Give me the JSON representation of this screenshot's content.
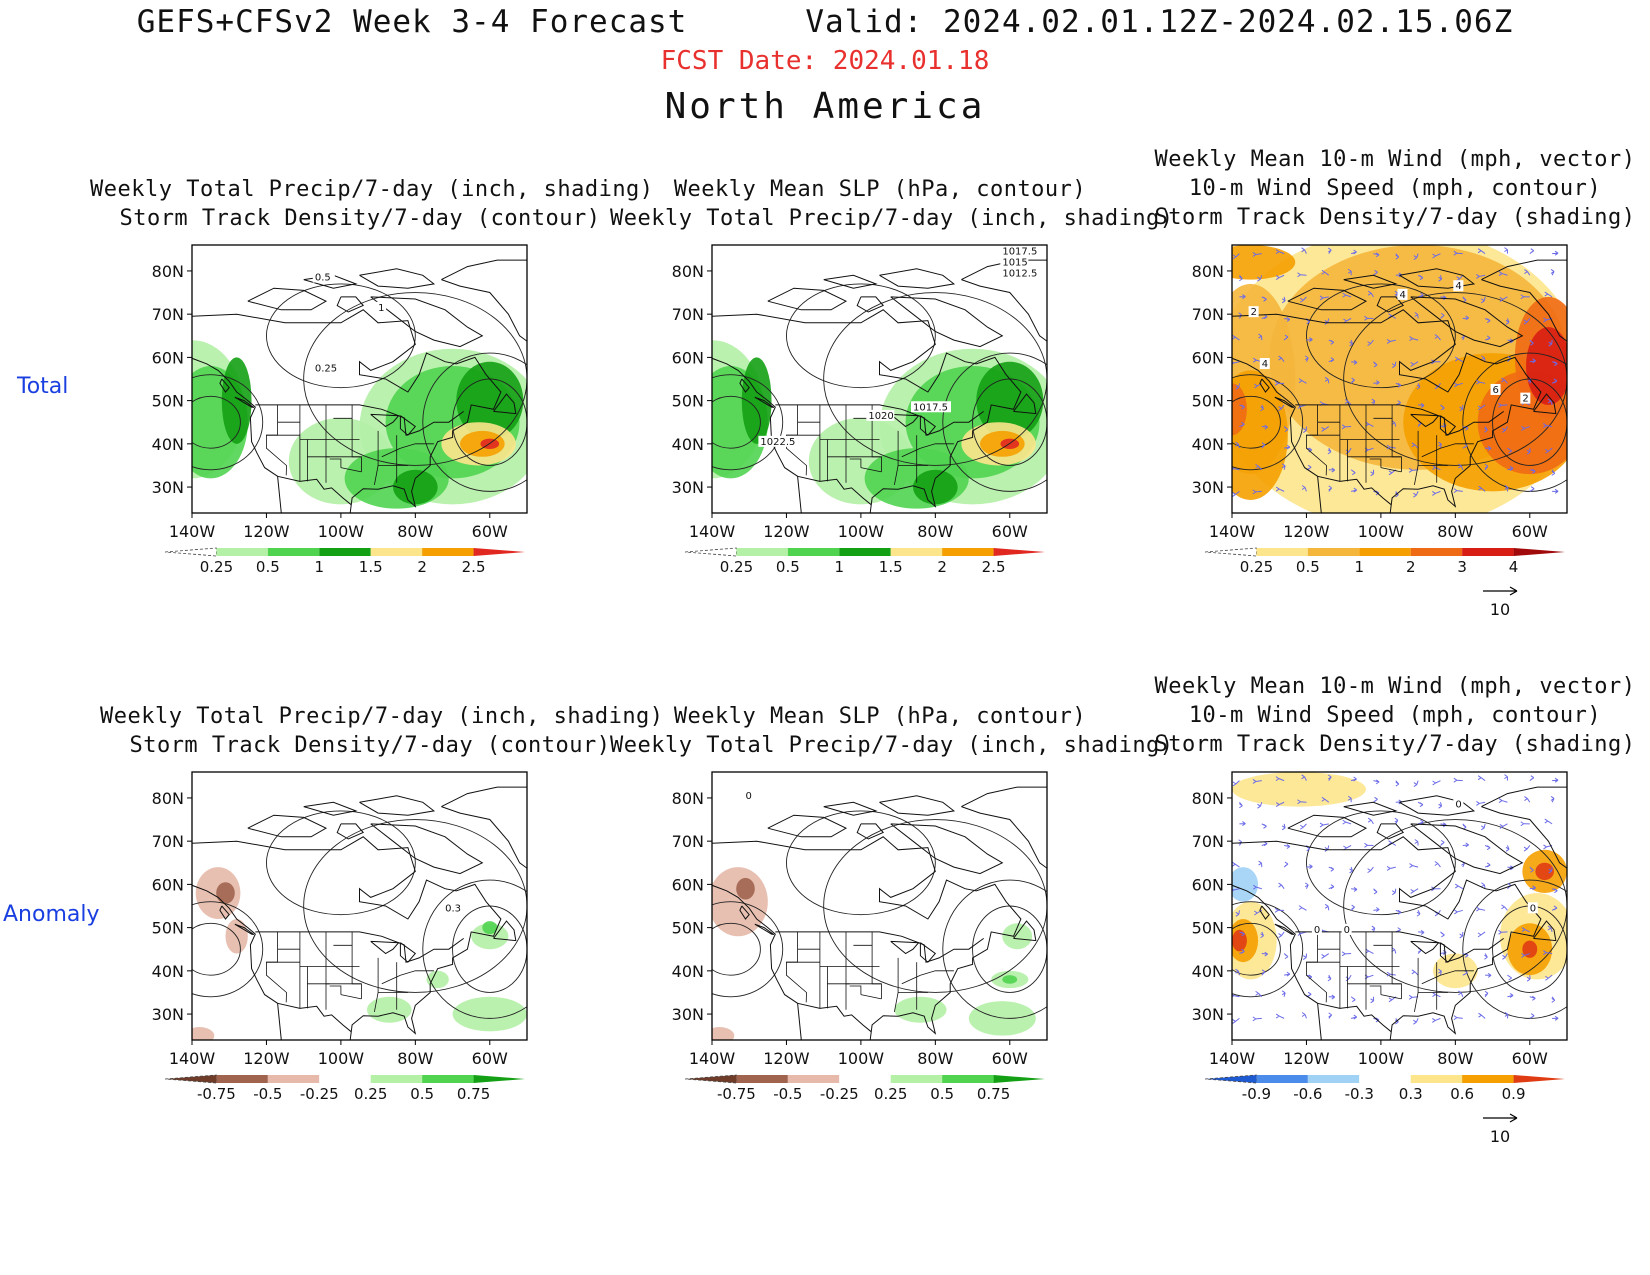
{
  "header": {
    "title": "GEFS+CFSv2 Week 3-4 Forecast",
    "valid": "Valid: 2024.02.01.12Z-2024.02.15.06Z",
    "fcst_date": "FCST Date: 2024.01.18",
    "region": "North America"
  },
  "rows": [
    {
      "label": "Total"
    },
    {
      "label": "Anomaly"
    }
  ],
  "map_axes": {
    "lat_labels": [
      "80N",
      "70N",
      "60N",
      "50N",
      "40N",
      "30N"
    ],
    "lon_labels": [
      "140W",
      "120W",
      "100W",
      "80W",
      "60W"
    ]
  },
  "panels": [
    {
      "id": "total-precip",
      "title_lines": [
        "Weekly Total Precip/7-day (inch, shading)",
        "Storm Track Density/7-day (contour)"
      ],
      "colorbar": {
        "labels": [
          "0.25",
          "0.5",
          "1",
          "1.5",
          "2",
          "2.5"
        ],
        "colors": [
          "#ffffff",
          "#b4f0a6",
          "#50d450",
          "#14a014",
          "#fde58c",
          "#f5a000",
          "#e02820"
        ]
      },
      "contour_labels": [
        "0.5",
        "1",
        "0.25"
      ],
      "vector_key": null
    },
    {
      "id": "total-slp",
      "title_lines": [
        "Weekly Mean SLP (hPa, contour)",
        "Weekly Total Precip/7-day (inch, shading)"
      ],
      "colorbar": {
        "labels": [
          "0.25",
          "0.5",
          "1",
          "1.5",
          "2",
          "2.5"
        ],
        "colors": [
          "#ffffff",
          "#b4f0a6",
          "#50d450",
          "#14a014",
          "#fde58c",
          "#f5a000",
          "#e02820"
        ]
      },
      "contour_labels": [
        "1017.5",
        "1015",
        "1012.5",
        "1022.5",
        "1020",
        "1017.5"
      ],
      "vector_key": null
    },
    {
      "id": "total-wind",
      "title_lines": [
        "Weekly Mean 10-m Wind (mph, vector)",
        "10-m Wind Speed (mph, contour)",
        "Storm Track Density/7-day (shading)"
      ],
      "colorbar": {
        "labels": [
          "0.25",
          "0.5",
          "1",
          "2",
          "3",
          "4"
        ],
        "colors": [
          "#ffffff",
          "#fde58c",
          "#f5b63c",
          "#f5a000",
          "#ef6a14",
          "#d81e14",
          "#a00a0a"
        ]
      },
      "contour_labels": [
        "4",
        "4",
        "2",
        "4",
        "6",
        "2"
      ],
      "vector_key": "10"
    },
    {
      "id": "anom-precip",
      "title_lines": [
        "Weekly Total Precip/7-day (inch, shading)",
        "Storm Track Density/7-day (contour)"
      ],
      "colorbar": {
        "labels": [
          "-0.75",
          "-0.5",
          "-0.25",
          "0.25",
          "0.5",
          "0.75"
        ],
        "colors": [
          "#6e3c28",
          "#a0644e",
          "#e6b9aa",
          "#ffffff",
          "#b4f0a6",
          "#50d450",
          "#14a014"
        ]
      },
      "contour_labels": [
        "0.3"
      ],
      "vector_key": null
    },
    {
      "id": "anom-slp",
      "title_lines": [
        "Weekly Mean SLP (hPa, contour)",
        "Weekly Total Precip/7-day (inch, shading)"
      ],
      "colorbar": {
        "labels": [
          "-0.75",
          "-0.5",
          "-0.25",
          "0.25",
          "0.5",
          "0.75"
        ],
        "colors": [
          "#6e3c28",
          "#a0644e",
          "#e6b9aa",
          "#ffffff",
          "#b4f0a6",
          "#50d450",
          "#14a014"
        ]
      },
      "contour_labels": [
        "0"
      ],
      "vector_key": null
    },
    {
      "id": "anom-wind",
      "title_lines": [
        "Weekly Mean 10-m Wind (mph, vector)",
        "10-m Wind Speed (mph, contour)",
        "Storm Track Density/7-day (shading)"
      ],
      "colorbar": {
        "labels": [
          "-0.9",
          "-0.6",
          "-0.3",
          "0.3",
          "0.6",
          "0.9"
        ],
        "colors": [
          "#1e5ad2",
          "#4b8ceb",
          "#a0d2f5",
          "#ffffff",
          "#fde58c",
          "#f5a000",
          "#e03c14"
        ]
      },
      "contour_labels": [
        "0",
        "0",
        "0",
        "0"
      ],
      "vector_key": "10"
    }
  ]
}
